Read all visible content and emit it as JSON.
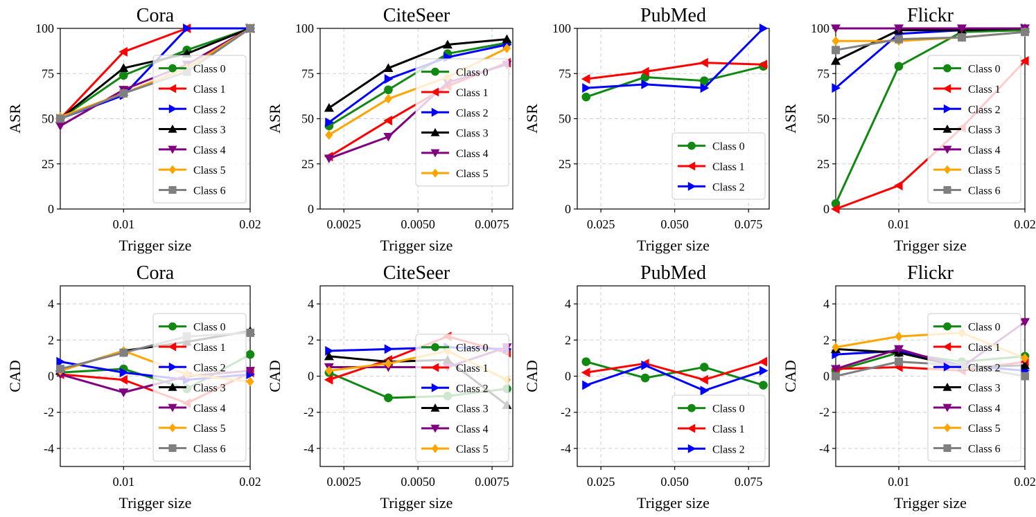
{
  "figure": {
    "title": "ASR and CAD vs trigger size per target class"
  },
  "colors": {
    "Class 0": "#118811",
    "Class 1": "#ff0000",
    "Class 2": "#0000ff",
    "Class 3": "#000000",
    "Class 4": "#800080",
    "Class 5": "#ffa500",
    "Class 6": "#808080"
  },
  "markers": {
    "Class 0": "circle",
    "Class 1": "triangle-left",
    "Class 2": "triangle-right",
    "Class 3": "triangle-up",
    "Class 4": "triangle-down",
    "Class 5": "diamond",
    "Class 6": "square"
  },
  "chart_data": [
    {
      "type": "line",
      "title": "Cora",
      "xlabel": "Trigger size",
      "ylabel": "ASR",
      "xlim": [
        0.005,
        0.02
      ],
      "ylim": [
        0,
        100
      ],
      "xticks": [
        0.01,
        0.02
      ],
      "xtick_labels": [
        "0.01",
        "0.02"
      ],
      "yticks": [
        0,
        25,
        50,
        75,
        100
      ],
      "ytick_labels": [
        "0",
        "25",
        "50",
        "75",
        "100"
      ],
      "legend": "right",
      "legend_top": 80,
      "x": [
        0.005,
        0.01,
        0.015,
        0.02
      ],
      "series": [
        {
          "name": "Class 0",
          "values": [
            50,
            74,
            88,
            100
          ]
        },
        {
          "name": "Class 1",
          "values": [
            50,
            87,
            100,
            100
          ]
        },
        {
          "name": "Class 2",
          "values": [
            50,
            63,
            100,
            100
          ]
        },
        {
          "name": "Class 3",
          "values": [
            50,
            78,
            86,
            100
          ]
        },
        {
          "name": "Class 4",
          "values": [
            46,
            66,
            80,
            100
          ]
        },
        {
          "name": "Class 5",
          "values": [
            51,
            64,
            78,
            100
          ]
        },
        {
          "name": "Class 6",
          "values": [
            50,
            64,
            76,
            100
          ]
        }
      ]
    },
    {
      "type": "line",
      "title": "CiteSeer",
      "xlabel": "Trigger size",
      "ylabel": "ASR",
      "xlim": [
        0.0017,
        0.0082
      ],
      "ylim": [
        0,
        100
      ],
      "xticks": [
        0.0025,
        0.005,
        0.0075
      ],
      "xtick_labels": [
        "0.0025",
        "0.0050",
        "0.0075"
      ],
      "yticks": [
        0,
        25,
        50,
        75,
        100
      ],
      "ytick_labels": [
        "0",
        "25",
        "50",
        "75",
        "100"
      ],
      "legend": "right",
      "legend_top": 85,
      "x": [
        0.002,
        0.004,
        0.006,
        0.008
      ],
      "series": [
        {
          "name": "Class 0",
          "values": [
            46,
            66,
            86,
            92
          ]
        },
        {
          "name": "Class 1",
          "values": [
            29,
            49,
            68,
            81
          ]
        },
        {
          "name": "Class 2",
          "values": [
            48,
            72,
            84,
            91
          ]
        },
        {
          "name": "Class 3",
          "values": [
            56,
            78,
            91,
            94
          ]
        },
        {
          "name": "Class 4",
          "values": [
            28,
            40,
            70,
            80
          ]
        },
        {
          "name": "Class 5",
          "values": [
            41,
            61,
            73,
            89
          ]
        }
      ]
    },
    {
      "type": "line",
      "title": "PubMed",
      "xlabel": "Trigger size",
      "ylabel": "ASR",
      "xlim": [
        0.017,
        0.082
      ],
      "ylim": [
        0,
        100
      ],
      "xticks": [
        0.025,
        0.05,
        0.075
      ],
      "xtick_labels": [
        "0.025",
        "0.050",
        "0.075"
      ],
      "yticks": [
        0,
        25,
        50,
        75,
        100
      ],
      "ytick_labels": [
        "0",
        "25",
        "50",
        "75",
        "100"
      ],
      "legend": "bottom-right",
      "legend_top": 192,
      "x": [
        0.02,
        0.04,
        0.06,
        0.08
      ],
      "series": [
        {
          "name": "Class 0",
          "values": [
            62,
            73,
            71,
            79
          ]
        },
        {
          "name": "Class 1",
          "values": [
            72,
            76,
            81,
            80
          ]
        },
        {
          "name": "Class 2",
          "values": [
            67,
            69,
            67,
            100
          ]
        }
      ]
    },
    {
      "type": "line",
      "title": "Flickr",
      "xlabel": "Trigger size",
      "ylabel": "ASR",
      "xlim": [
        0.005,
        0.02
      ],
      "ylim": [
        0,
        100
      ],
      "xticks": [
        0.01,
        0.02
      ],
      "xtick_labels": [
        "0.01",
        "0.02"
      ],
      "yticks": [
        0,
        25,
        50,
        75,
        100
      ],
      "ytick_labels": [
        "0",
        "25",
        "50",
        "75",
        "100"
      ],
      "legend": "right",
      "legend_top": 80,
      "x": [
        0.005,
        0.01,
        0.015,
        0.02
      ],
      "series": [
        {
          "name": "Class 0",
          "values": [
            3,
            79,
            98,
            99
          ]
        },
        {
          "name": "Class 1",
          "values": [
            0,
            13,
            45,
            82
          ]
        },
        {
          "name": "Class 2",
          "values": [
            67,
            97,
            99,
            100
          ]
        },
        {
          "name": "Class 3",
          "values": [
            82,
            99,
            99,
            100
          ]
        },
        {
          "name": "Class 4",
          "values": [
            100,
            100,
            100,
            100
          ]
        },
        {
          "name": "Class 5",
          "values": [
            93,
            93,
            95,
            98
          ]
        },
        {
          "name": "Class 6",
          "values": [
            88,
            94,
            95,
            98
          ]
        }
      ]
    },
    {
      "type": "line",
      "title": "Cora",
      "xlabel": "Trigger size",
      "ylabel": "CAD",
      "xlim": [
        0.005,
        0.02
      ],
      "ylim": [
        -5,
        5
      ],
      "xticks": [
        0.01,
        0.02
      ],
      "xtick_labels": [
        "0.01",
        "0.02"
      ],
      "yticks": [
        -4,
        -2,
        0,
        2,
        4
      ],
      "ytick_labels": [
        "-4",
        "-2",
        "0",
        "2",
        "4"
      ],
      "legend": "right",
      "legend_top": 453,
      "x": [
        0.005,
        0.01,
        0.015,
        0.02
      ],
      "series": [
        {
          "name": "Class 0",
          "values": [
            0.2,
            0.4,
            -0.7,
            1.2
          ]
        },
        {
          "name": "Class 1",
          "values": [
            0.1,
            -0.2,
            -1.5,
            0.2
          ]
        },
        {
          "name": "Class 2",
          "values": [
            0.8,
            0.2,
            -0.2,
            0.1
          ]
        },
        {
          "name": "Class 3",
          "values": [
            0.3,
            1.4,
            1.9,
            2.5
          ]
        },
        {
          "name": "Class 4",
          "values": [
            0.1,
            -0.9,
            0.0,
            0.3
          ]
        },
        {
          "name": "Class 5",
          "values": [
            0.3,
            1.4,
            0.1,
            -0.3
          ]
        },
        {
          "name": "Class 6",
          "values": [
            0.4,
            1.3,
            2.2,
            2.4
          ]
        }
      ]
    },
    {
      "type": "line",
      "title": "CiteSeer",
      "xlabel": "Trigger size",
      "ylabel": "CAD",
      "xlim": [
        0.0017,
        0.0082
      ],
      "ylim": [
        -5,
        5
      ],
      "xticks": [
        0.0025,
        0.005,
        0.0075
      ],
      "xtick_labels": [
        "0.0025",
        "0.0050",
        "0.0075"
      ],
      "yticks": [
        -4,
        -2,
        0,
        2,
        4
      ],
      "ytick_labels": [
        "-4",
        "-2",
        "0",
        "2",
        "4"
      ],
      "legend": "right",
      "legend_top": 483,
      "x": [
        0.002,
        0.004,
        0.006,
        0.008
      ],
      "series": [
        {
          "name": "Class 0",
          "values": [
            0.2,
            -1.2,
            -1.1,
            -0.7
          ]
        },
        {
          "name": "Class 1",
          "values": [
            -0.2,
            0.9,
            2.2,
            1.3
          ]
        },
        {
          "name": "Class 2",
          "values": [
            1.4,
            1.5,
            1.6,
            1.5
          ]
        },
        {
          "name": "Class 3",
          "values": [
            1.1,
            0.8,
            0.9,
            -1.6
          ]
        },
        {
          "name": "Class 4",
          "values": [
            0.5,
            0.5,
            0.5,
            1.6
          ]
        },
        {
          "name": "Class 5",
          "values": [
            0.3,
            0.7,
            1.4,
            -0.2
          ]
        }
      ]
    },
    {
      "type": "line",
      "title": "PubMed",
      "xlabel": "Trigger size",
      "ylabel": "CAD",
      "xlim": [
        0.017,
        0.082
      ],
      "ylim": [
        -5,
        5
      ],
      "xticks": [
        0.025,
        0.05,
        0.075
      ],
      "xtick_labels": [
        "0.025",
        "0.050",
        "0.075"
      ],
      "yticks": [
        -4,
        -2,
        0,
        2,
        4
      ],
      "ytick_labels": [
        "-4",
        "-2",
        "0",
        "2",
        "4"
      ],
      "legend": "bottom-right",
      "legend_top": 571,
      "x": [
        0.02,
        0.04,
        0.06,
        0.08
      ],
      "series": [
        {
          "name": "Class 0",
          "values": [
            0.8,
            -0.1,
            0.5,
            -0.5
          ]
        },
        {
          "name": "Class 1",
          "values": [
            0.2,
            0.7,
            -0.2,
            0.8
          ]
        },
        {
          "name": "Class 2",
          "values": [
            -0.5,
            0.6,
            -0.8,
            0.3
          ]
        }
      ]
    },
    {
      "type": "line",
      "title": "Flickr",
      "xlabel": "Trigger size",
      "ylabel": "CAD",
      "xlim": [
        0.005,
        0.02
      ],
      "ylim": [
        -5,
        5
      ],
      "xticks": [
        0.01,
        0.02
      ],
      "xtick_labels": [
        "0.01",
        "0.02"
      ],
      "yticks": [
        -4,
        -2,
        0,
        2,
        4
      ],
      "ytick_labels": [
        "-4",
        "-2",
        "0",
        "2",
        "4"
      ],
      "legend": "right",
      "legend_top": 453,
      "x": [
        0.005,
        0.01,
        0.015,
        0.02
      ],
      "series": [
        {
          "name": "Class 0",
          "values": [
            0.3,
            1.3,
            0.8,
            1.1
          ]
        },
        {
          "name": "Class 1",
          "values": [
            0.4,
            0.5,
            0.3,
            0.8
          ]
        },
        {
          "name": "Class 2",
          "values": [
            1.2,
            1.4,
            0.6,
            0.3
          ]
        },
        {
          "name": "Class 3",
          "values": [
            1.5,
            1.3,
            0.5,
            0.6
          ]
        },
        {
          "name": "Class 4",
          "values": [
            0.4,
            1.5,
            0.5,
            3.0
          ]
        },
        {
          "name": "Class 5",
          "values": [
            1.6,
            2.2,
            2.4,
            1.0
          ]
        },
        {
          "name": "Class 6",
          "values": [
            0.0,
            0.8,
            0.6,
            0.0
          ]
        }
      ]
    }
  ]
}
